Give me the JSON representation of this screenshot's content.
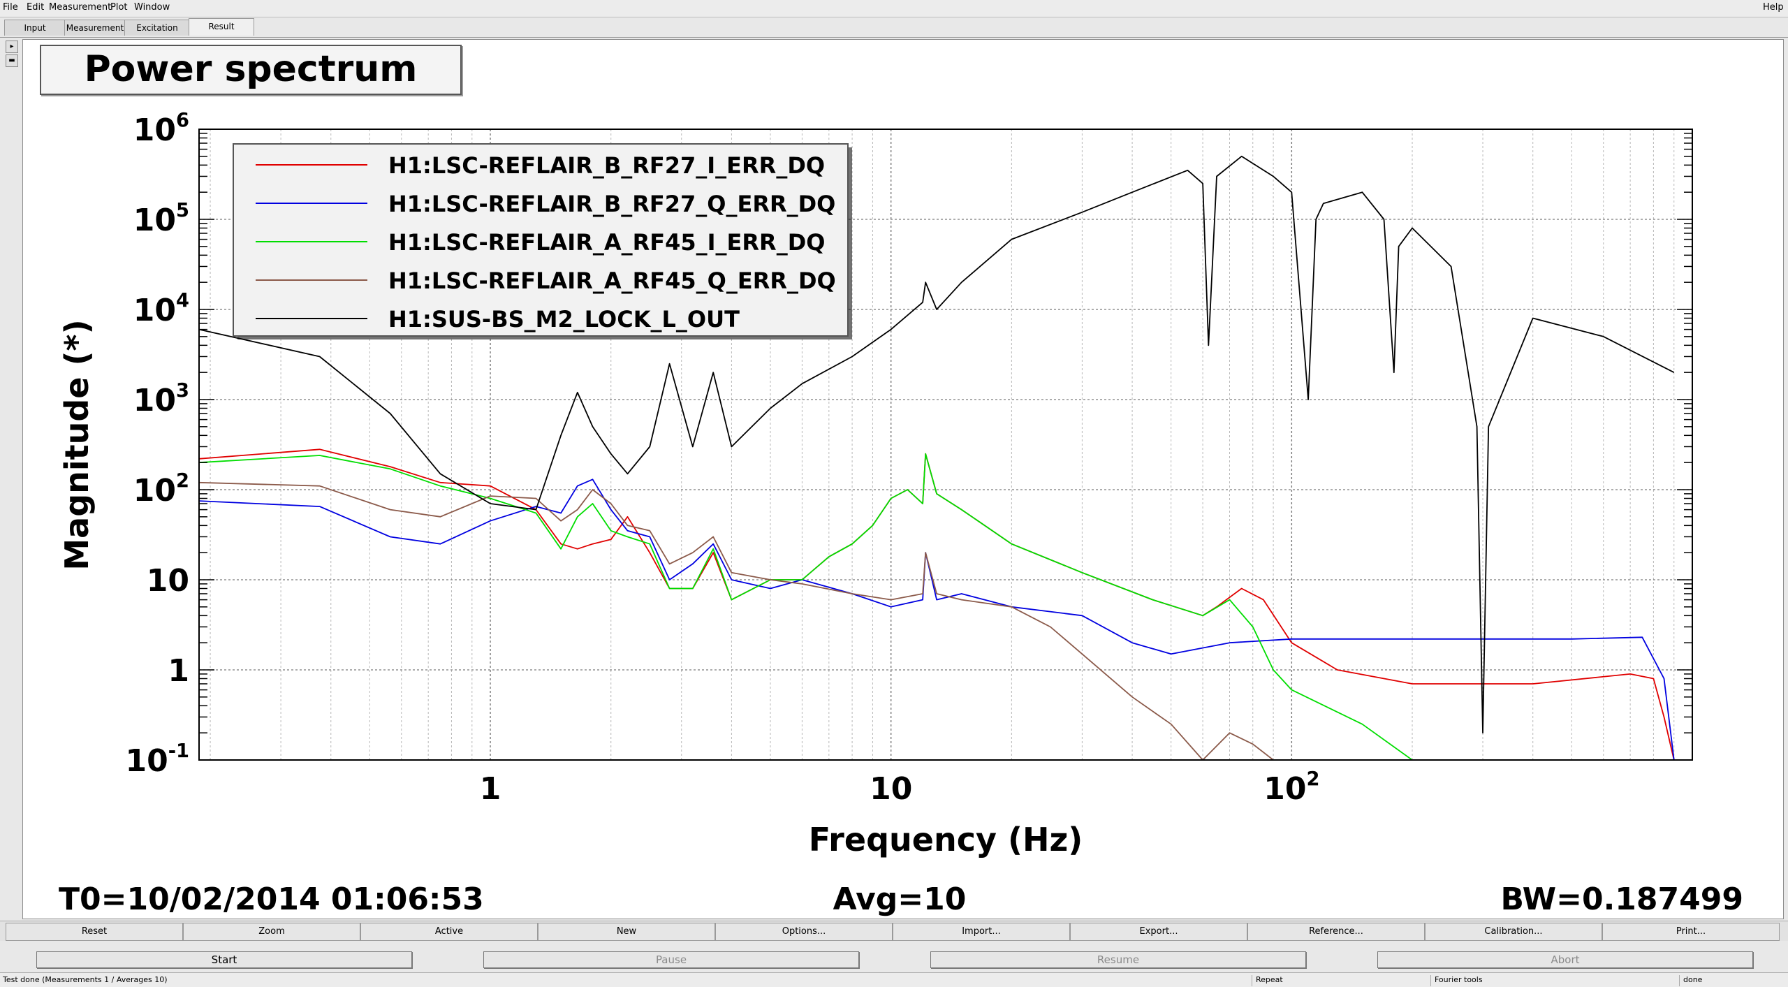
{
  "menu": {
    "items": [
      "File",
      "Edit",
      "Measurement",
      "Plot",
      "Window"
    ],
    "help": "Help"
  },
  "tabs": [
    {
      "label": "Input"
    },
    {
      "label": "Measurement"
    },
    {
      "label": "Excitation"
    },
    {
      "label": "Result"
    }
  ],
  "plot": {
    "title": "Power spectrum",
    "t0": "T0=10/02/2014 01:06:53",
    "avg": "Avg=10",
    "bw": "BW=0.187499"
  },
  "chart_data": {
    "type": "line",
    "title": "Power spectrum",
    "xlabel": "Frequency (Hz)",
    "ylabel": "Magnitude (*)",
    "xscale": "log",
    "yscale": "log",
    "xlim": [
      0.1875,
      1000
    ],
    "ylim": [
      0.1,
      1000000
    ],
    "xticks": [
      {
        "value": 1,
        "label": "1"
      },
      {
        "value": 10,
        "label": "10"
      },
      {
        "value": 100,
        "label": "10",
        "sup": "2"
      }
    ],
    "yticks": [
      {
        "value": 0.1,
        "label": "10",
        "sup": "-1"
      },
      {
        "value": 1,
        "label": "1"
      },
      {
        "value": 10,
        "label": "10"
      },
      {
        "value": 100,
        "label": "10",
        "sup": "2"
      },
      {
        "value": 1000,
        "label": "10",
        "sup": "3"
      },
      {
        "value": 10000,
        "label": "10",
        "sup": "4"
      },
      {
        "value": 100000,
        "label": "10",
        "sup": "5"
      },
      {
        "value": 1000000,
        "label": "10",
        "sup": "6"
      }
    ],
    "grid": true,
    "legend_position": "top-left",
    "series": [
      {
        "name": "H1:LSC-REFLAIR_B_RF27_I_ERR_DQ",
        "color": "#e00000",
        "x": [
          0.1875,
          0.375,
          0.5625,
          0.75,
          1.0,
          1.3,
          1.5,
          1.65,
          1.8,
          2.0,
          2.2,
          2.5,
          2.8,
          3.2,
          3.6,
          4.0,
          5.0,
          6.0,
          7.0,
          8.0,
          9.0,
          10.0,
          11.0,
          12.0,
          12.2,
          13.0,
          15.0,
          20.0,
          30.0,
          45.0,
          60.0,
          65.0,
          75.0,
          85.0,
          100.0,
          130.0,
          200.0,
          400.0,
          700.0,
          800.0,
          850.0,
          900.0
        ],
        "y": [
          220,
          280,
          180,
          120,
          110,
          60,
          25,
          22,
          25,
          28,
          50,
          20,
          8,
          8,
          20,
          6,
          10,
          10,
          18,
          25,
          40,
          80,
          100,
          70,
          250,
          90,
          60,
          25,
          12,
          6,
          4,
          5,
          8,
          6,
          2,
          1,
          0.7,
          0.7,
          0.9,
          0.8,
          0.3,
          0.1
        ]
      },
      {
        "name": "H1:LSC-REFLAIR_B_RF27_Q_ERR_DQ",
        "color": "#0000e0",
        "x": [
          0.1875,
          0.375,
          0.5625,
          0.75,
          1.0,
          1.3,
          1.5,
          1.65,
          1.8,
          2.0,
          2.2,
          2.5,
          2.8,
          3.2,
          3.6,
          4.0,
          5.0,
          6.0,
          8.0,
          10.0,
          12.0,
          12.2,
          13.0,
          15.0,
          20.0,
          30.0,
          40.0,
          50.0,
          70.0,
          100.0,
          200.0,
          500.0,
          750.0,
          850.0,
          900.0
        ],
        "y": [
          75,
          65,
          30,
          25,
          45,
          65,
          55,
          110,
          130,
          60,
          35,
          30,
          10,
          15,
          25,
          10,
          8,
          10,
          7,
          5,
          6,
          20,
          6,
          7,
          5,
          4,
          2,
          1.5,
          2,
          2.2,
          2.2,
          2.2,
          2.3,
          0.8,
          0.1
        ]
      },
      {
        "name": "H1:LSC-REFLAIR_A_RF45_I_ERR_DQ",
        "color": "#00dd00",
        "x": [
          0.1875,
          0.375,
          0.5625,
          0.75,
          1.0,
          1.3,
          1.5,
          1.65,
          1.8,
          2.0,
          2.2,
          2.5,
          2.8,
          3.2,
          3.6,
          4.0,
          5.0,
          6.0,
          7.0,
          8.0,
          9.0,
          10.0,
          11.0,
          12.0,
          12.2,
          13.0,
          15.0,
          20.0,
          30.0,
          45.0,
          60.0,
          70.0,
          80.0,
          90.0,
          100.0,
          150.0,
          200.0
        ],
        "y": [
          200,
          240,
          170,
          110,
          80,
          55,
          22,
          50,
          70,
          35,
          30,
          25,
          8,
          8,
          22,
          6,
          10,
          10,
          18,
          25,
          40,
          80,
          100,
          70,
          250,
          90,
          60,
          25,
          12,
          6,
          4,
          6,
          3,
          1,
          0.6,
          0.25,
          0.1
        ]
      },
      {
        "name": "H1:LSC-REFLAIR_A_RF45_Q_ERR_DQ",
        "color": "#8b5a4a",
        "x": [
          0.1875,
          0.375,
          0.5625,
          0.75,
          1.0,
          1.3,
          1.5,
          1.65,
          1.8,
          2.0,
          2.2,
          2.5,
          2.8,
          3.2,
          3.6,
          4.0,
          5.0,
          6.0,
          8.0,
          10.0,
          12.0,
          12.2,
          13.0,
          15.0,
          20.0,
          25.0,
          30.0,
          40.0,
          50.0,
          60.0,
          70.0,
          80.0,
          90.0
        ],
        "y": [
          120,
          110,
          60,
          50,
          85,
          80,
          45,
          60,
          100,
          70,
          40,
          35,
          15,
          20,
          30,
          12,
          10,
          9,
          7,
          6,
          7,
          20,
          7,
          6,
          5,
          3,
          1.5,
          0.5,
          0.25,
          0.1,
          0.2,
          0.15,
          0.1
        ]
      },
      {
        "name": "H1:SUS-BS_M2_LOCK_L_OUT",
        "color": "#000000",
        "x": [
          0.1875,
          0.375,
          0.5625,
          0.75,
          1.0,
          1.3,
          1.5,
          1.65,
          1.8,
          2.0,
          2.2,
          2.5,
          2.8,
          3.2,
          3.6,
          4.0,
          5.0,
          6.0,
          8.0,
          10.0,
          12.0,
          12.2,
          13.0,
          15.0,
          20.0,
          30.0,
          40.0,
          55.0,
          60.0,
          62.0,
          65.0,
          75.0,
          90.0,
          100.0,
          110.0,
          115.0,
          120.0,
          150.0,
          170.0,
          180.0,
          185.0,
          200.0,
          250.0,
          290.0,
          300.0,
          310.0,
          400.0,
          600.0,
          900.0
        ],
        "y": [
          6000,
          3000,
          700,
          150,
          70,
          60,
          400,
          1200,
          500,
          250,
          150,
          300,
          2500,
          300,
          2000,
          300,
          800,
          1500,
          3000,
          6000,
          12000,
          20000,
          10000,
          20000,
          60000,
          120000,
          200000,
          350000,
          250000,
          4000,
          300000,
          500000,
          300000,
          200000,
          1000,
          100000,
          150000,
          200000,
          100000,
          2000,
          50000,
          80000,
          30000,
          500,
          0.2,
          500,
          8000,
          5000,
          2000
        ]
      }
    ]
  },
  "toolbar": {
    "buttons": [
      "Reset",
      "Zoom",
      "Active",
      "New",
      "Options...",
      "Import...",
      "Export...",
      "Reference...",
      "Calibration...",
      "Print..."
    ]
  },
  "actions": {
    "start": "Start",
    "pause": "Pause",
    "resume": "Resume",
    "abort": "Abort"
  },
  "status": {
    "message": "Test done (Measurements 1 / Averages 10)",
    "repeat": "Repeat",
    "tools": "Fourier tools",
    "state": "done"
  }
}
